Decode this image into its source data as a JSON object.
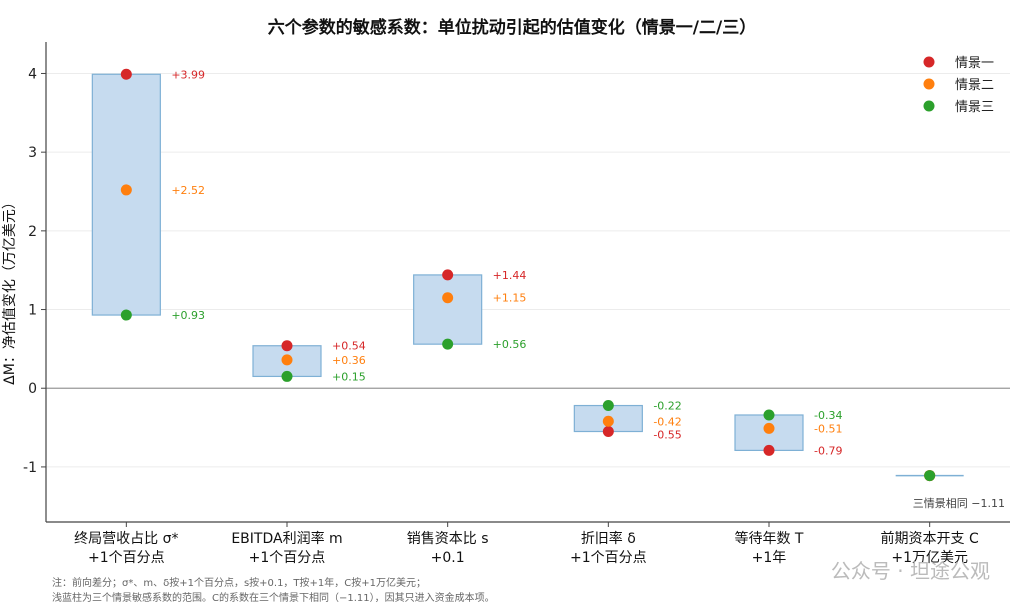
{
  "chart_data": {
    "type": "range-dot",
    "title": "六个参数的敏感系数：单位扰动引起的估值变化（情景一/二/三）",
    "ylabel": "ΔM：净估值变化（万亿美元）",
    "ylim": [
      -1.7,
      4.4
    ],
    "yticks": [
      -1,
      0,
      1,
      2,
      3,
      4
    ],
    "grid": "horizontal",
    "legend_position": "top-right",
    "categories": [
      {
        "line1": "终局营收占比 σ*",
        "line2": "+1个百分点"
      },
      {
        "line1": "EBITDA利润率 m",
        "line2": "+1个百分点"
      },
      {
        "line1": "销售资本比 s",
        "line2": "+0.1"
      },
      {
        "line1": "折旧率 δ",
        "line2": "+1个百分点"
      },
      {
        "line1": "等待年数 T",
        "line2": "+1年"
      },
      {
        "line1": "前期资本开支 C",
        "line2": "+1万亿美元"
      }
    ],
    "series": [
      {
        "name": "情景一",
        "color": "#d62728",
        "values": [
          3.99,
          0.54,
          1.44,
          -0.55,
          -0.79,
          -1.11
        ],
        "labels": [
          "+3.99",
          "+0.54",
          "+1.44",
          "-0.55",
          "-0.79",
          ""
        ]
      },
      {
        "name": "情景二",
        "color": "#ff7f0e",
        "values": [
          2.52,
          0.36,
          1.15,
          -0.42,
          -0.51,
          -1.11
        ],
        "labels": [
          "+2.52",
          "+0.36",
          "+1.15",
          "-0.42",
          "-0.51",
          ""
        ]
      },
      {
        "name": "情景三",
        "color": "#2ca02c",
        "values": [
          0.93,
          0.15,
          0.56,
          -0.22,
          -0.34,
          -1.11
        ],
        "labels": [
          "+0.93",
          "+0.15",
          "+0.56",
          "-0.22",
          "-0.34",
          ""
        ]
      }
    ],
    "range_color": "#c6dbef",
    "range_edge_color": "#7eb0d5",
    "annotation": "三情景相同 −1.11",
    "note_line1": "注：前向差分；σ*、m、δ按+1个百分点，s按+0.1，T按+1年，C按+1万亿美元；",
    "note_line2": "浅蓝柱为三个情景敏感系数的范围。C的系数在三个情景下相同（−1.11），因其只进入资金成本项。"
  },
  "watermark": "公众号 · 坦途公观"
}
